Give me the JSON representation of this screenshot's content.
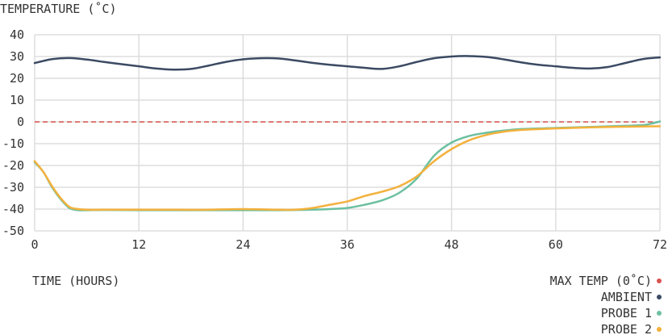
{
  "chart_data": {
    "type": "line",
    "ylabel": "TEMPERATURE (˚C)",
    "xlabel": "TIME (HOURS)",
    "xlim": [
      0,
      72
    ],
    "ylim": [
      -50,
      40
    ],
    "x_ticks": [
      0,
      12,
      24,
      36,
      48,
      60,
      72
    ],
    "y_ticks": [
      40,
      30,
      20,
      10,
      0,
      -10,
      -20,
      -30,
      -40,
      -50
    ],
    "grid": true,
    "legend_position": "bottom-right",
    "reference_line": {
      "name": "MAX TEMP (0˚C)",
      "y": 0,
      "color": "#d9534f",
      "style": "dashed"
    },
    "series": [
      {
        "name": "AMBIENT",
        "color": "#3b4a63",
        "x": [
          0,
          2,
          4,
          6,
          8,
          10,
          12,
          14,
          16,
          18,
          20,
          22,
          24,
          26,
          28,
          30,
          32,
          34,
          36,
          38,
          40,
          42,
          44,
          46,
          48,
          50,
          52,
          54,
          56,
          58,
          60,
          62,
          64,
          66,
          68,
          70,
          72
        ],
        "y": [
          27,
          28.8,
          29.3,
          28.6,
          27.5,
          26.5,
          25.5,
          24.5,
          24,
          24.3,
          25.8,
          27.5,
          28.7,
          29.2,
          29.1,
          28.2,
          27.1,
          26.2,
          25.5,
          24.8,
          24.3,
          25.5,
          27.5,
          29.2,
          30,
          30.2,
          29.8,
          28.7,
          27.3,
          26.2,
          25.5,
          24.8,
          24.5,
          25.2,
          27,
          28.8,
          29.6
        ]
      },
      {
        "name": "PROBE 1",
        "color": "#6cc0a0",
        "x": [
          0,
          1,
          2,
          3,
          4,
          5,
          6,
          8,
          12,
          16,
          20,
          24,
          28,
          32,
          34,
          36,
          38,
          40,
          42,
          44,
          46,
          48,
          50,
          52,
          54,
          56,
          60,
          64,
          68,
          70,
          71,
          72
        ],
        "y": [
          -18.5,
          -23,
          -30,
          -35.5,
          -39.5,
          -40.5,
          -40.5,
          -40.4,
          -40.5,
          -40.5,
          -40.5,
          -40.5,
          -40.5,
          -40.3,
          -40,
          -39.5,
          -38,
          -36,
          -32.5,
          -26,
          -15.5,
          -9.5,
          -6.5,
          -5,
          -4,
          -3.3,
          -2.8,
          -2.3,
          -1.8,
          -1.5,
          -0.8,
          0.2
        ]
      },
      {
        "name": "PROBE 2",
        "color": "#f3b13d",
        "x": [
          0,
          1,
          2,
          3,
          4,
          5,
          6,
          8,
          12,
          16,
          20,
          24,
          28,
          30,
          32,
          34,
          36,
          38,
          40,
          42,
          44,
          46,
          48,
          50,
          52,
          54,
          56,
          60,
          64,
          68,
          72
        ],
        "y": [
          -18,
          -23,
          -29.5,
          -35,
          -39,
          -40,
          -40.3,
          -40.3,
          -40.3,
          -40.3,
          -40.3,
          -40,
          -40.3,
          -40.3,
          -39.5,
          -38,
          -36.5,
          -34,
          -32,
          -29.5,
          -25,
          -18,
          -12.5,
          -8.5,
          -6,
          -4.5,
          -3.7,
          -3,
          -2.5,
          -2.2,
          -2
        ]
      }
    ]
  }
}
